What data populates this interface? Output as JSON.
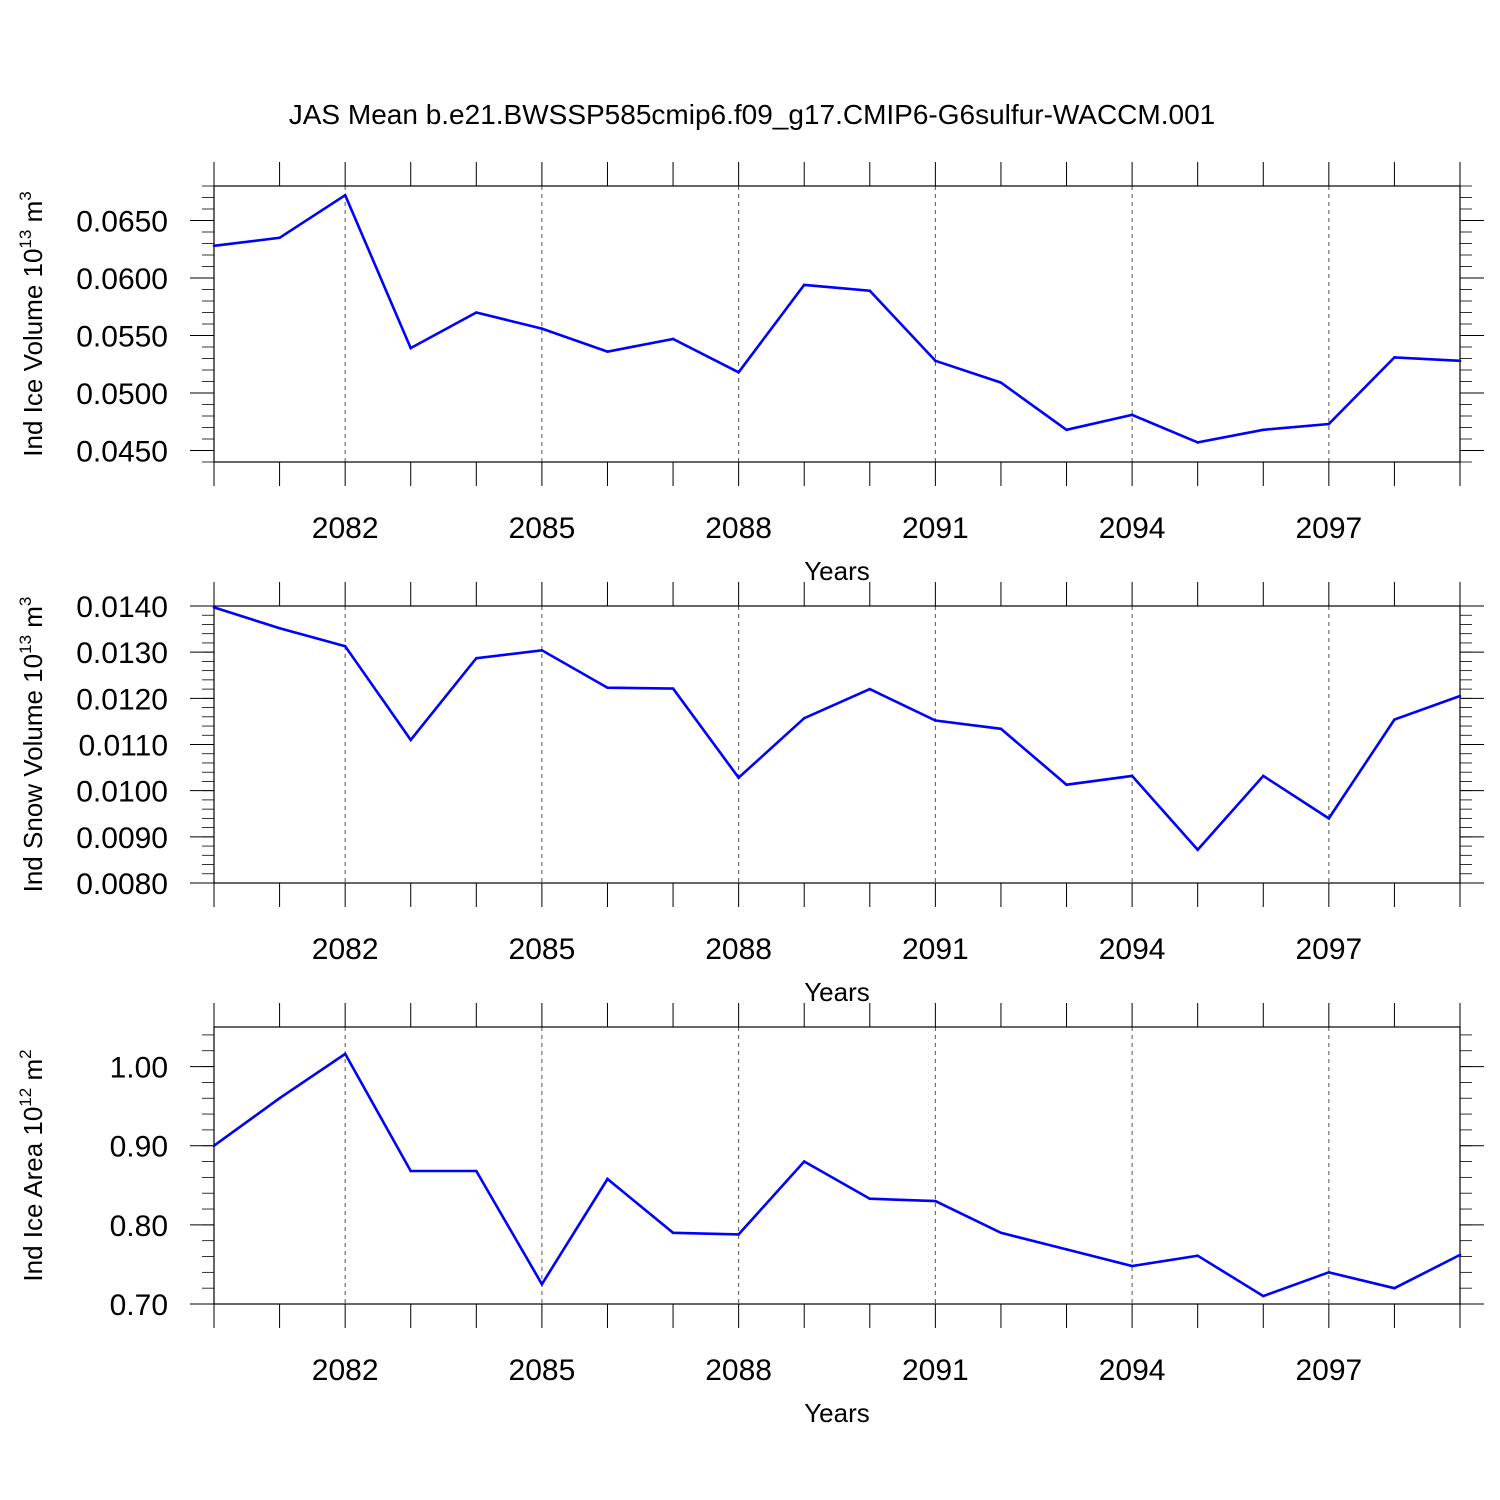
{
  "chart_data": [
    {
      "type": "line",
      "title": "JAS Mean b.e21.BWSSP585cmip6.f09_g17.CMIP6-G6sulfur-WACCM.001",
      "xlabel": "Years",
      "ylabel_main": "Ind Ice Volume 10",
      "ylabel_exp": "13",
      "ylabel_unit": "m",
      "ylabel_unit_exp": "3",
      "x": [
        2080,
        2081,
        2082,
        2083,
        2084,
        2085,
        2086,
        2087,
        2088,
        2089,
        2090,
        2091,
        2092,
        2093,
        2094,
        2095,
        2096,
        2097,
        2098,
        2099
      ],
      "values": [
        0.0628,
        0.0635,
        0.0672,
        0.0539,
        0.057,
        0.0556,
        0.0536,
        0.0547,
        0.0518,
        0.0594,
        0.0589,
        0.0528,
        0.0509,
        0.0468,
        0.0481,
        0.0457,
        0.0468,
        0.0473,
        0.0531,
        0.0528
      ],
      "xlim": [
        2080,
        2099
      ],
      "ylim": [
        0.044,
        0.068
      ],
      "yticks": [
        0.045,
        0.05,
        0.055,
        0.06,
        0.065
      ],
      "ytick_labels": [
        "0.0450",
        "0.0500",
        "0.0550",
        "0.0600",
        "0.0650"
      ],
      "yminor_step": 0.001,
      "xticks": [
        2082,
        2085,
        2088,
        2091,
        2094,
        2097
      ],
      "xtick_labels": [
        "2082",
        "2085",
        "2088",
        "2091",
        "2094",
        "2097"
      ],
      "grid": "vertical dashed at major x ticks",
      "line_color": "#0000ff"
    },
    {
      "type": "line",
      "title": "",
      "xlabel": "Years",
      "ylabel_main": "Ind Snow Volume 10",
      "ylabel_exp": "13",
      "ylabel_unit": "m",
      "ylabel_unit_exp": "3",
      "x": [
        2080,
        2081,
        2082,
        2083,
        2084,
        2085,
        2086,
        2087,
        2088,
        2089,
        2090,
        2091,
        2092,
        2093,
        2094,
        2095,
        2096,
        2097,
        2098,
        2099
      ],
      "values": [
        0.01397,
        0.01352,
        0.01313,
        0.0111,
        0.01287,
        0.01304,
        0.01223,
        0.01221,
        0.01028,
        0.01157,
        0.0122,
        0.01152,
        0.01134,
        0.01013,
        0.01032,
        0.00872,
        0.01032,
        0.0094,
        0.01154,
        0.01205
      ],
      "xlim": [
        2080,
        2099
      ],
      "ylim": [
        0.008,
        0.014
      ],
      "yticks": [
        0.008,
        0.009,
        0.01,
        0.011,
        0.012,
        0.013,
        0.014
      ],
      "ytick_labels": [
        "0.0080",
        "0.0090",
        "0.0100",
        "0.0110",
        "0.0120",
        "0.0130",
        "0.0140"
      ],
      "yminor_step": 0.0002,
      "xticks": [
        2082,
        2085,
        2088,
        2091,
        2094,
        2097
      ],
      "xtick_labels": [
        "2082",
        "2085",
        "2088",
        "2091",
        "2094",
        "2097"
      ],
      "grid": "vertical dashed at major x ticks",
      "line_color": "#0000ff"
    },
    {
      "type": "line",
      "title": "",
      "xlabel": "Years",
      "ylabel_main": "Ind Ice Area 10",
      "ylabel_exp": "12",
      "ylabel_unit": "m",
      "ylabel_unit_exp": "2",
      "x": [
        2080,
        2081,
        2082,
        2083,
        2084,
        2085,
        2086,
        2087,
        2088,
        2089,
        2090,
        2091,
        2092,
        2093,
        2094,
        2095,
        2096,
        2097,
        2098,
        2099
      ],
      "values": [
        0.9,
        0.96,
        1.016,
        0.868,
        0.868,
        0.725,
        0.858,
        0.79,
        0.788,
        0.88,
        0.833,
        0.83,
        0.79,
        0.769,
        0.748,
        0.761,
        0.71,
        0.74,
        0.72,
        0.762
      ],
      "xlim": [
        2080,
        2099
      ],
      "ylim": [
        0.7,
        1.05
      ],
      "yticks": [
        0.7,
        0.8,
        0.9,
        1.0
      ],
      "ytick_labels": [
        "0.70",
        "0.80",
        "0.90",
        "1.00"
      ],
      "yminor_step": 0.02,
      "xticks": [
        2082,
        2085,
        2088,
        2091,
        2094,
        2097
      ],
      "xtick_labels": [
        "2082",
        "2085",
        "2088",
        "2091",
        "2094",
        "2097"
      ],
      "grid": "vertical dashed at major x ticks",
      "line_color": "#0000ff"
    }
  ]
}
